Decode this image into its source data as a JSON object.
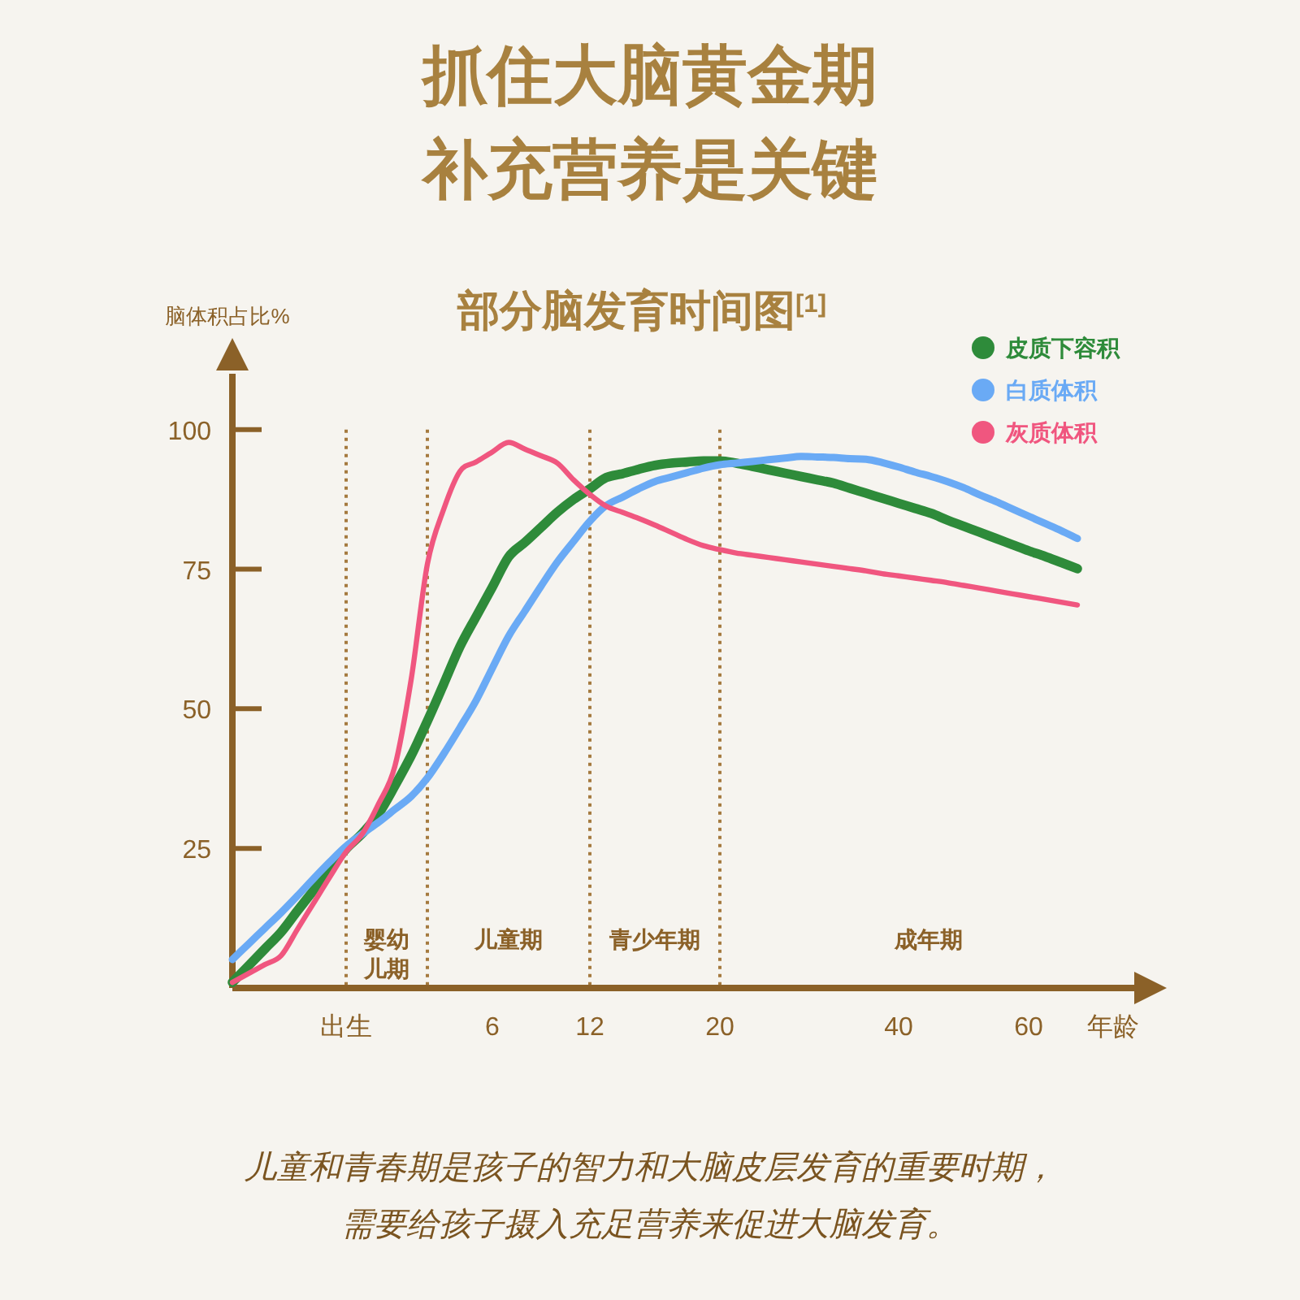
{
  "chart_data": {
    "type": "line",
    "title": "部分脑发育时间图$^{[1]}$",
    "ylabel": "脑体积占比%",
    "xlabel": "年龄",
    "annotations": [
      "抓住大脑黄金期",
      "补充营养是关键",
      "婴幼儿期",
      "儿童期",
      "青少年期",
      "成年期",
      "儿童和青春期是孩子的智力和大脑皮层发育的重要时期，",
      "需要给孩子摄入充足营养来促进大脑发育。"
    ],
    "categories": [
      null,
      null,
      null,
      null,
      null,
      null,
      null,
      "出生",
      null,
      null,
      null,
      null,
      null,
      null,
      null,
      null,
      "6",
      null,
      null,
      null,
      null,
      null,
      "12",
      null,
      null,
      null,
      null,
      null,
      null,
      null,
      "20",
      null,
      null,
      null,
      null,
      null,
      null,
      null,
      null,
      null,
      null,
      "40",
      null,
      null,
      null,
      null,
      null,
      null,
      null,
      "60",
      null,
      null,
      null
    ],
    "ylim": [
      0,
      110
    ],
    "yticks": [
      25,
      50,
      75,
      100
    ],
    "legend": "top right",
    "line_style": "solid",
    "series": [
      {
        "name": "皮质下容积",
        "color": "#2e8b3a",
        "values": [
          1,
          4,
          7,
          10,
          13.8,
          17.5,
          21.3,
          24.9,
          27.7,
          31.2,
          36.2,
          41.6,
          47.8,
          54.4,
          61.1,
          66.5,
          71.8,
          77.2,
          79.8,
          82.5,
          85.2,
          87.5,
          89.4,
          91.4,
          92.1,
          92.9,
          93.6,
          94.0,
          94.2,
          94.4,
          94.4,
          94.0,
          93.4,
          92.8,
          92.2,
          91.6,
          91.0,
          90.4,
          89.5,
          88.6,
          87.7,
          86.8,
          85.9,
          85.0,
          83.8,
          82.7,
          81.6,
          80.5,
          79.4,
          78.3,
          77.3,
          76.2,
          75.1
        ]
      },
      {
        "name": "白质体积",
        "color": "#6aaaf5",
        "values": [
          5.1,
          7.9,
          10.7,
          13.5,
          16.5,
          19.6,
          22.6,
          25.4,
          27.6,
          29.7,
          32.0,
          34.3,
          37.6,
          41.9,
          46.6,
          51.5,
          57.3,
          63.0,
          67.5,
          72.0,
          76.3,
          80.0,
          83.6,
          86.4,
          87.9,
          89.4,
          90.7,
          91.5,
          92.3,
          93.1,
          93.7,
          94.0,
          94.3,
          94.6,
          94.9,
          95.2,
          95.1,
          95.0,
          94.8,
          94.7,
          94.1,
          93.3,
          92.4,
          91.6,
          90.7,
          89.6,
          88.3,
          87.1,
          85.8,
          84.5,
          83.2,
          81.9,
          80.5
        ]
      },
      {
        "name": "灰质体积",
        "color": "#f0567f",
        "values": [
          1,
          2.6,
          4.2,
          5.8,
          10.5,
          15.2,
          19.9,
          24.4,
          27.6,
          33.0,
          39.7,
          55.2,
          75.9,
          85.7,
          92.5,
          94.2,
          96.0,
          97.7,
          96.5,
          95.3,
          94.0,
          91.0,
          88.4,
          86.3,
          85.2,
          84.1,
          82.9,
          81.6,
          80.3,
          79.2,
          78.5,
          77.9,
          77.5,
          77.1,
          76.7,
          76.3,
          75.9,
          75.5,
          75.1,
          74.7,
          74.2,
          73.8,
          73.4,
          73.0,
          72.6,
          72.1,
          71.6,
          71.1,
          70.6,
          70.1,
          69.6,
          69.1,
          68.6
        ]
      }
    ]
  }
}
